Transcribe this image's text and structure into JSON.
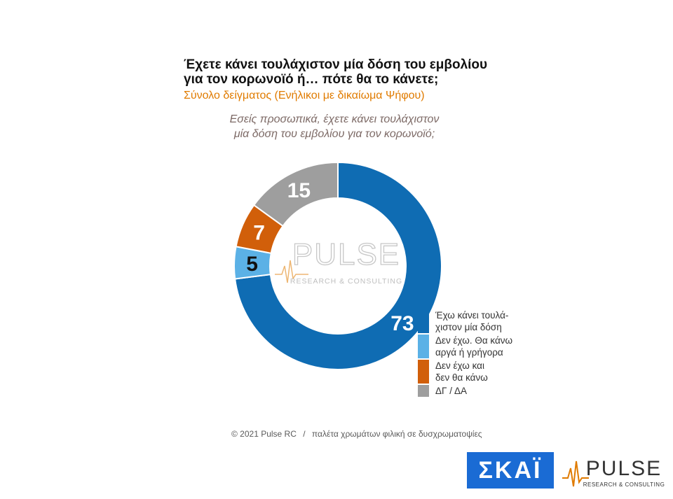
{
  "title": {
    "line1": "Έχετε κάνει τουλάχιστον μία δόση του εμβολίου",
    "line2": "για τον κορωνοϊό ή… πότε θα το κάνετε;"
  },
  "subtitle": "Σύνολο δείγματος (Ενήλικοι με δικαίωμα Ψήφου)",
  "question": {
    "line1": "Εσείς προσωπικά, έχετε κάνει τουλάχιστον",
    "line2": "μία δόση του εμβολίου για τον κορωνοϊό;"
  },
  "chart_data": {
    "type": "pie",
    "donut": true,
    "labels": [
      "Έχω κάνει τουλάχιστον μία δόση",
      "Δεν έχω. Θα κάνω αργά ή γρήγορα",
      "Δεν έχω και δεν θα κάνω",
      "ΔΓ / ΔΑ"
    ],
    "values": [
      73,
      5,
      7,
      15
    ],
    "colors": [
      "#0f6cb3",
      "#5bb1e6",
      "#d15f0a",
      "#9e9e9e"
    ],
    "label_colors": [
      "#ffffff",
      "#111111",
      "#ffffff",
      "#ffffff"
    ],
    "legend_position": "bottom-right"
  },
  "legend": [
    {
      "line1": "Έχω κάνει τουλά-",
      "line2": "χιστον μία δόση",
      "color": "#0f6cb3"
    },
    {
      "line1": "Δεν έχω. Θα κάνω",
      "line2": "αργά ή γρήγορα",
      "color": "#5bb1e6"
    },
    {
      "line1": "Δεν έχω και",
      "line2": "δεν θα κάνω",
      "color": "#d15f0a"
    },
    {
      "line1": "ΔΓ / ΔΑ",
      "line2": "",
      "color": "#9e9e9e"
    }
  ],
  "watermark": {
    "brand": "PULSE",
    "tagline": "RESEARCH & CONSULTING"
  },
  "footer": {
    "copyright": "© 2021 Pulse RC",
    "separator": "/",
    "note": "παλέτα χρωμάτων φιλική σε δυσχρωματοψίες"
  },
  "logos": {
    "skai": "ΣΚΑΪ",
    "pulse": "PULSE",
    "pulse_tagline": "RESEARCH & CONSULTING",
    "skai_color": "#1a6bd4"
  }
}
